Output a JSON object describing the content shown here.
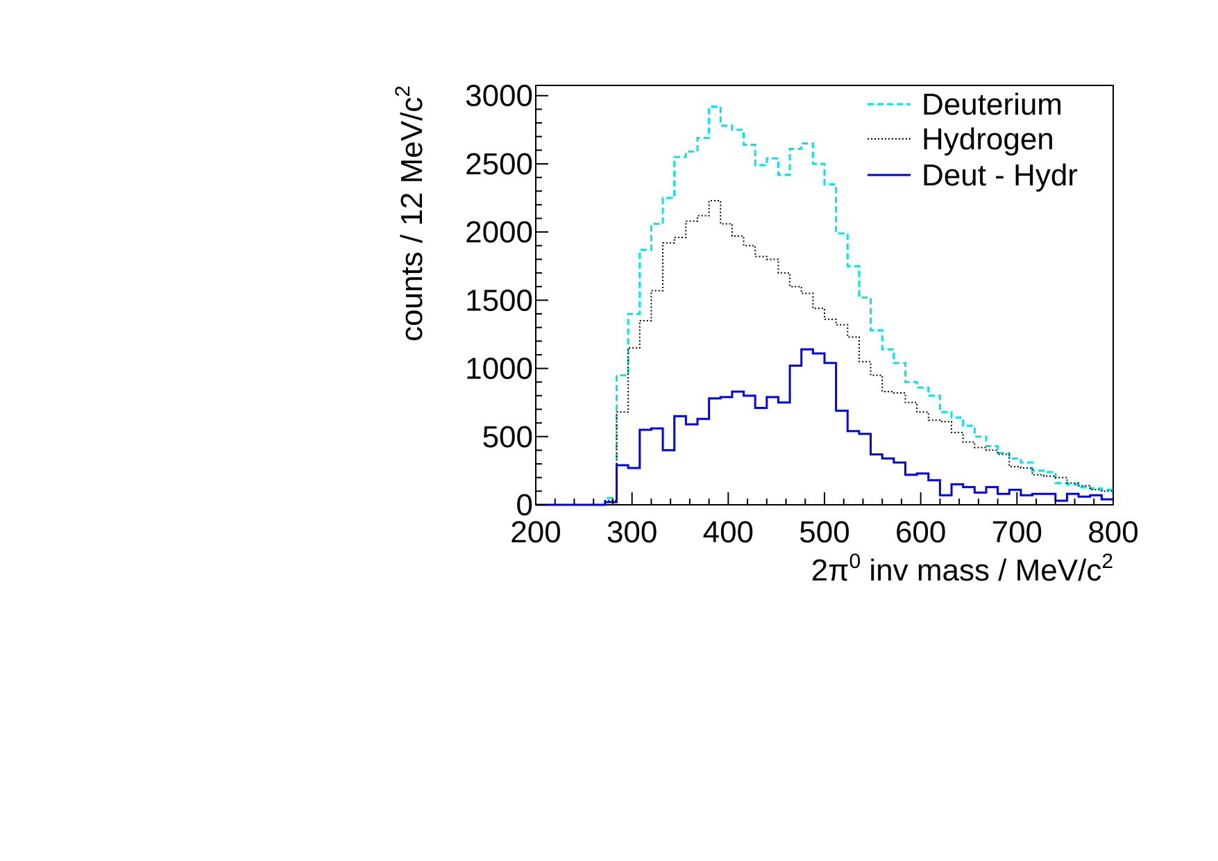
{
  "chart_data": {
    "type": "line",
    "drawstyle": "histogram-steps",
    "xlabel": {
      "prefix": "2π",
      "prefix_sup": "0",
      "main": " inv mass / MeV/c",
      "main_sup": "2"
    },
    "ylabel": {
      "main": "counts / 12 MeV/c",
      "sup": "2"
    },
    "xlim": [
      200,
      800
    ],
    "ylim": [
      0,
      3075
    ],
    "x_ticks": [
      200,
      300,
      400,
      500,
      600,
      700,
      800
    ],
    "y_ticks": [
      0,
      500,
      1000,
      1500,
      2000,
      2500,
      3000
    ],
    "grid": false,
    "legend_position": "top-right",
    "bin_width": 12,
    "bin_edges_start": 200,
    "series": [
      {
        "name": "Deuterium",
        "color": "#00e5e5",
        "style": "dashed",
        "values": [
          0,
          0,
          0,
          0,
          0,
          0,
          50,
          950,
          1400,
          1870,
          2060,
          2250,
          2550,
          2590,
          2690,
          2920,
          2780,
          2750,
          2640,
          2490,
          2540,
          2420,
          2610,
          2650,
          2500,
          2350,
          1990,
          1750,
          1520,
          1280,
          1140,
          1040,
          900,
          860,
          800,
          680,
          640,
          580,
          500,
          430,
          380,
          340,
          310,
          250,
          240,
          160,
          150,
          130,
          120,
          110
        ]
      },
      {
        "name": "Hydrogen",
        "color": "#000000",
        "style": "dotted",
        "values": [
          0,
          0,
          0,
          0,
          0,
          0,
          30,
          680,
          1150,
          1350,
          1570,
          1920,
          1960,
          2080,
          2120,
          2230,
          2060,
          1970,
          1900,
          1820,
          1800,
          1700,
          1600,
          1550,
          1440,
          1360,
          1320,
          1230,
          1050,
          950,
          830,
          820,
          750,
          680,
          620,
          610,
          530,
          460,
          420,
          400,
          370,
          280,
          270,
          220,
          210,
          200,
          160,
          140,
          110,
          100
        ]
      },
      {
        "name": "Deut - Hydr",
        "color": "#0000ee",
        "style": "solid",
        "values": [
          0,
          0,
          0,
          0,
          0,
          0,
          20,
          290,
          270,
          550,
          560,
          400,
          650,
          590,
          630,
          780,
          790,
          830,
          800,
          710,
          790,
          750,
          1020,
          1140,
          1110,
          1040,
          690,
          540,
          520,
          370,
          340,
          310,
          220,
          230,
          180,
          70,
          150,
          130,
          90,
          130,
          80,
          110,
          70,
          80,
          80,
          30,
          80,
          60,
          70,
          40
        ]
      }
    ]
  }
}
